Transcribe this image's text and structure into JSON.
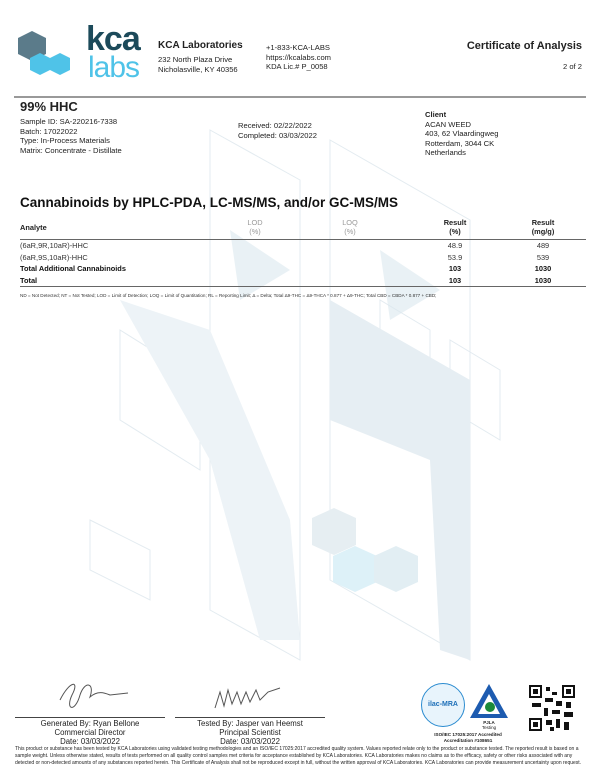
{
  "logo": {
    "text_top": "kca",
    "text_bottom": "labs"
  },
  "lab": {
    "name": "KCA Laboratories",
    "address1": "232 North Plaza Drive",
    "address2": "Nicholasville, KY 40356",
    "phone": "+1-833-KCA-LABS",
    "website": "https://kcalabs.com",
    "license": "KDA Lic.# P_0058"
  },
  "doc": {
    "title": "Certificate of Analysis",
    "page": "2 of 2"
  },
  "sample": {
    "name": "99% HHC",
    "id": "Sample ID: SA-220216-7338",
    "batch": "Batch: 17022022",
    "type": "Type: In-Process Materials",
    "matrix": "Matrix: Concentrate - Distillate",
    "received": "Received: 02/22/2022",
    "completed": "Completed: 03/03/2022"
  },
  "client": {
    "label": "Client",
    "name": "ACAN WEED",
    "address1": "403, 62 Vlaardingweg",
    "address2": "Rotterdam, 3044 CK",
    "country": "Netherlands"
  },
  "section": {
    "title": "Cannabinoids by HPLC-PDA, LC-MS/MS, and/or GC-MS/MS"
  },
  "table": {
    "headers": [
      {
        "l1": "Analyte",
        "l2": ""
      },
      {
        "l1": "LOD",
        "l2": "(%)"
      },
      {
        "l1": "LOQ",
        "l2": "(%)"
      },
      {
        "l1": "Result",
        "l2": "(%)"
      },
      {
        "l1": "Result",
        "l2": "(mg/g)"
      }
    ],
    "rows": [
      {
        "analyte": "(6aR,9R,10aR)-HHC",
        "lod": "",
        "loq": "",
        "pct": "48.9",
        "mgg": "489"
      },
      {
        "analyte": "(6aR,9S,10aR)-HHC",
        "lod": "",
        "loq": "",
        "pct": "53.9",
        "mgg": "539"
      },
      {
        "analyte": "Total Additional Cannabinoids",
        "lod": "",
        "loq": "",
        "pct": "103",
        "mgg": "1030"
      },
      {
        "analyte": "Total",
        "lod": "",
        "loq": "",
        "pct": "103",
        "mgg": "1030"
      }
    ],
    "footnote": "ND = Not Detected; NT = Not Tested; LOD = Limit of Detection; LOQ = Limit of Quantitation; RL = Reporting Limit; Δ = Delta; Total Δ9-THC = Δ9-THCA * 0.877 + Δ9-THC; Total CBD = CBDA * 0.877 + CBD;"
  },
  "signatures": [
    {
      "line1": "Generated By: Ryan Bellone",
      "line2": "Commercial Director",
      "line3": "Date: 03/03/2022"
    },
    {
      "line1": "Tested By: Jasper van Heemst",
      "line2": "Principal Scientist",
      "line3": "Date: 03/03/2022"
    }
  ],
  "accreditation": {
    "ilac": "ilac-MRA",
    "pjla": "PJLA",
    "pjla_sub": "Testing",
    "line1": "ISO/IEC 17025:2017 Accredited",
    "line2": "Accreditation #108651"
  },
  "disclaimer": "This product or substance has been tested by KCA Laboratories using validated testing methodologies and an ISO/IEC 17025:2017 accredited quality system. Values reported relate only to the product or substance tested. The reported result is based on a sample weight. Unless otherwise stated, results of tests performed on all quality control samples met criteria for acceptance established by KCA Laboratories. KCA Laboratories makes no claims as to the efficacy, safety or other risks associated with any detected or non-detected amounts of any substances reported herein. This Certificate of Analysis shall not be reproduced except in full, without the written approval of KCA Laboratories. KCA Laboratories can provide measurement uncertainty upon request.",
  "colors": {
    "brand_dark": "#1c4a5a",
    "brand_light": "#4fc3e8",
    "background_pattern": "#dfe9ef"
  }
}
